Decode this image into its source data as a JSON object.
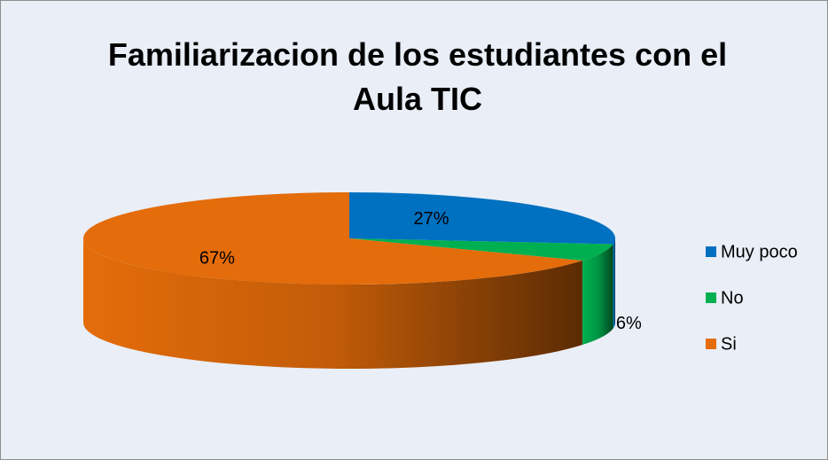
{
  "chart_data": {
    "type": "pie",
    "title": "Familiarizacion de los estudiantes con el Aula TIC",
    "categories": [
      "Muy poco",
      "No",
      "Si"
    ],
    "values": [
      27,
      6,
      67
    ],
    "value_labels": [
      "27%",
      "6%",
      "67%"
    ],
    "colors": [
      "#0070c0",
      "#00b050",
      "#e46c0a"
    ],
    "legend": "right"
  }
}
